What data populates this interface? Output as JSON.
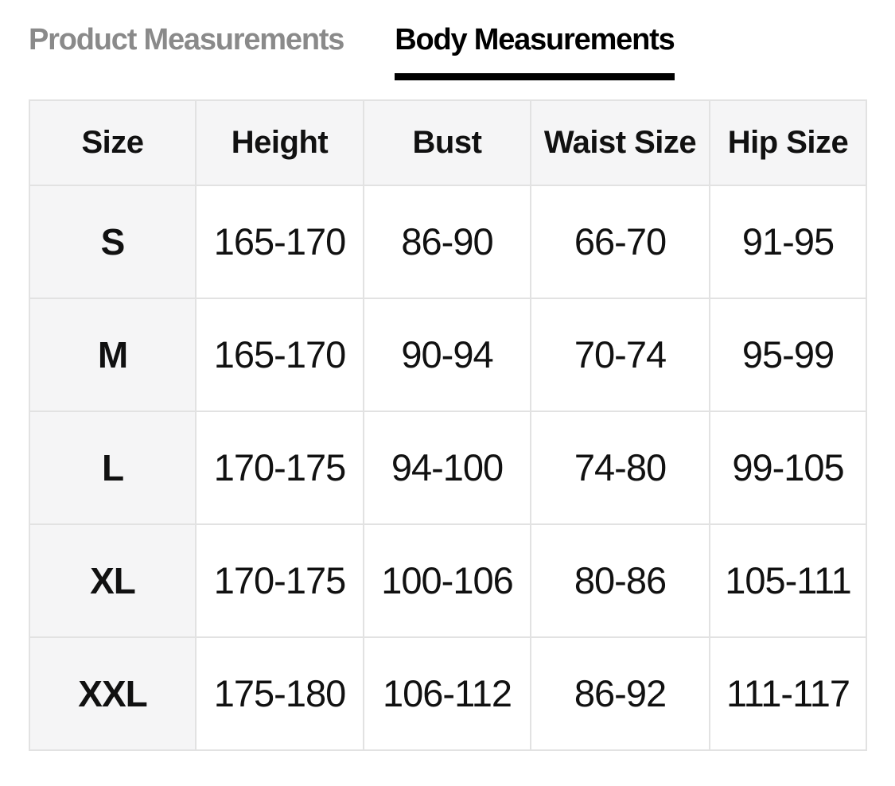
{
  "tabs": {
    "product": {
      "label": "Product Measurements",
      "active": false
    },
    "body": {
      "label": "Body Measurements",
      "active": true
    }
  },
  "table": {
    "columns": [
      "Size",
      "Height",
      "Bust",
      "Waist Size",
      "Hip Size"
    ],
    "rows": [
      [
        "S",
        "165-170",
        "86-90",
        "66-70",
        "91-95"
      ],
      [
        "M",
        "165-170",
        "90-94",
        "70-74",
        "95-99"
      ],
      [
        "L",
        "170-175",
        "94-100",
        "74-80",
        "99-105"
      ],
      [
        "XL",
        "170-175",
        "100-106",
        "80-86",
        "105-111"
      ],
      [
        "XXL",
        "175-180",
        "106-112",
        "86-92",
        "111-117"
      ]
    ]
  },
  "colors": {
    "tab_inactive": "#8a8a8a",
    "tab_active": "#000000",
    "active_underline": "#000000",
    "header_background": "#f5f5f6",
    "size_column_background": "#f5f5f6",
    "cell_border": "#e2e2e2",
    "text": "#111111"
  }
}
